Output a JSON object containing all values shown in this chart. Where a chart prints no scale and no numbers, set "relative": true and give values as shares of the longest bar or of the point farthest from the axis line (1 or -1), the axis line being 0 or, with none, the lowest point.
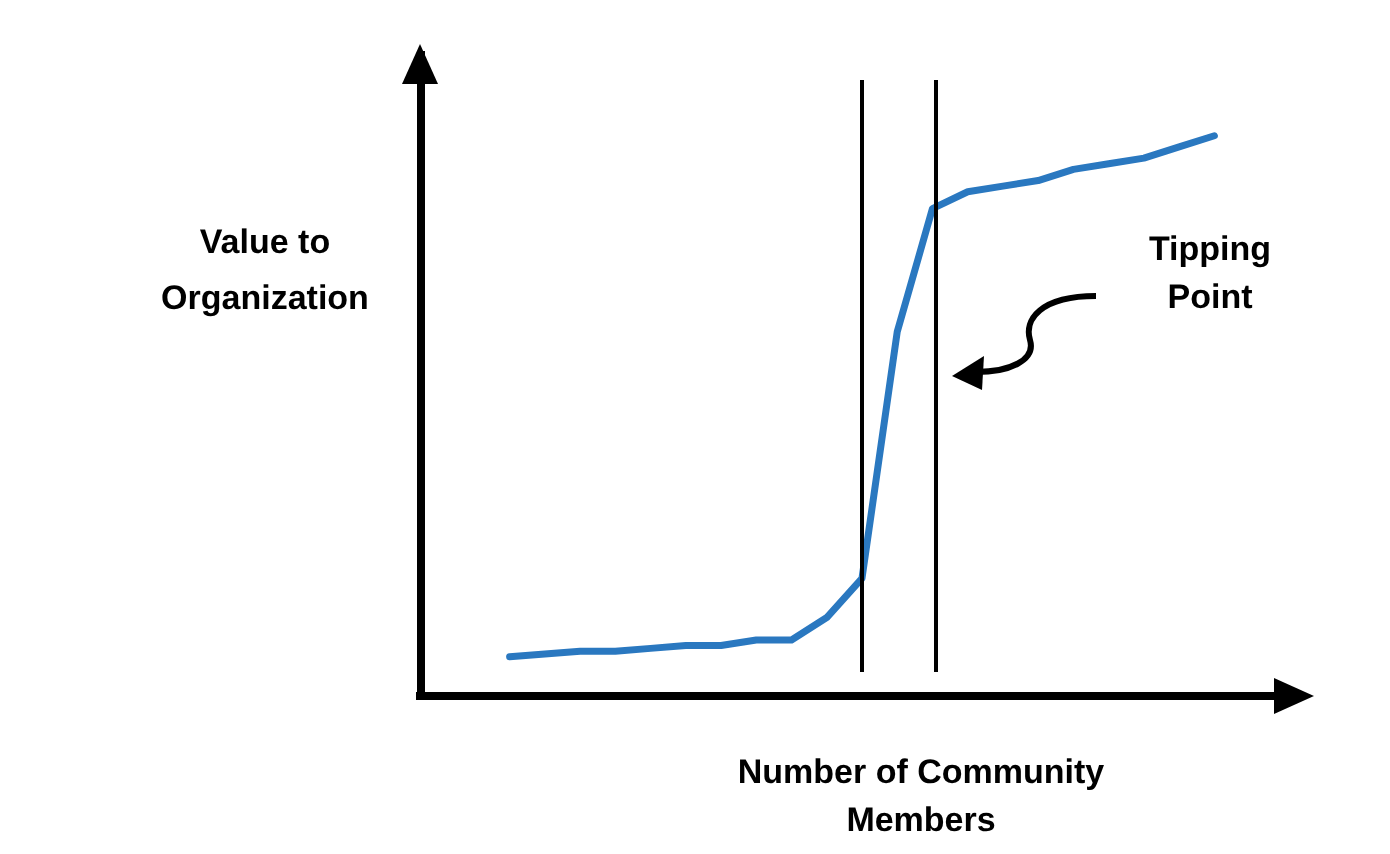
{
  "chart_data": {
    "type": "line",
    "relative": true,
    "xlabel": "Number of Community\nMembers",
    "ylabel": "Value to\nOrganization",
    "categories": [
      null,
      null,
      null,
      null,
      null,
      null,
      null,
      null,
      null,
      null,
      null,
      null,
      null,
      null,
      null,
      null,
      null,
      null,
      null,
      null,
      null
    ],
    "series": [
      {
        "color": "#2a78c0",
        "values": [
          0.07,
          0.075,
          0.08,
          0.08,
          0.085,
          0.09,
          0.09,
          0.1,
          0.1,
          0.14,
          0.21,
          0.65,
          0.87,
          0.9,
          0.91,
          0.92,
          0.94,
          0.95,
          0.96,
          0.98,
          1
        ]
      }
    ],
    "annotations": [
      "Tipping\nPoint"
    ],
    "marker": "none",
    "line_style": "solid",
    "grid": false
  }
}
